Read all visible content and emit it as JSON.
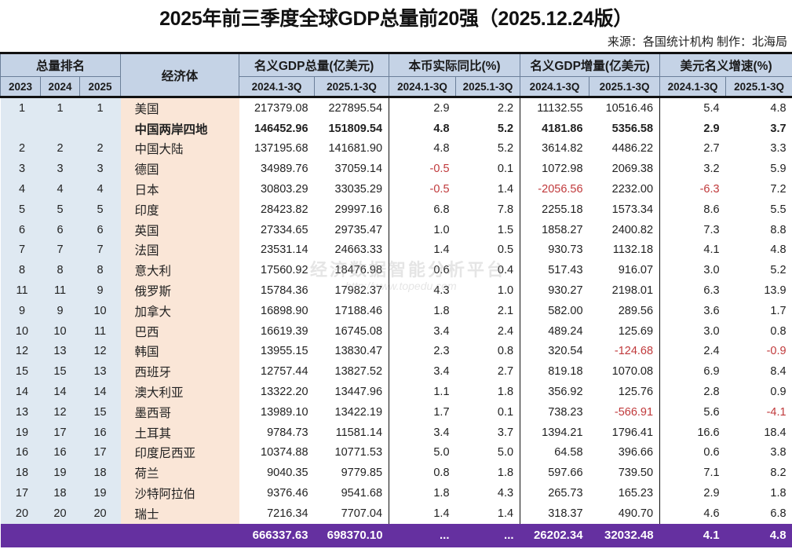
{
  "title": "2025年前三季度全球GDP总量前20强（2025.12.24版）",
  "source": "来源：各国统计机构 制作：北海局",
  "watermark": {
    "line1": "经济数据智能分析平台",
    "line2": "http://www.topedu.com"
  },
  "header": {
    "rank_group": "总量排名",
    "economy": "经济体",
    "groups": [
      "名义GDP总量(亿美元)",
      "本币实际同比(%)",
      "名义GDP增量(亿美元)",
      "美元名义增速(%)"
    ],
    "rank_years": [
      "2023",
      "2024",
      "2025"
    ],
    "periods": [
      "2024.1-3Q",
      "2025.1-3Q",
      "2024.1-3Q",
      "2025.1-3Q",
      "2024.1-3Q",
      "2025.1-3Q",
      "2024.1-3Q",
      "2025.1-3Q"
    ]
  },
  "rows": [
    {
      "r23": "1",
      "r24": "1",
      "r25": "1",
      "name": "美国",
      "gdp24": "217379.08",
      "gdp25": "227895.54",
      "real24": "2.9",
      "real25": "2.2",
      "inc24": "11132.55",
      "inc25": "10516.46",
      "usd24": "5.4",
      "usd25": "4.8"
    },
    {
      "r23": "",
      "r24": "",
      "r25": "",
      "name": "中国两岸四地",
      "gdp24": "146452.96",
      "gdp25": "151809.54",
      "real24": "4.8",
      "real25": "5.2",
      "inc24": "4181.86",
      "inc25": "5356.58",
      "usd24": "2.9",
      "usd25": "3.7",
      "bold": true
    },
    {
      "r23": "2",
      "r24": "2",
      "r25": "2",
      "name": "中国大陆",
      "gdp24": "137195.68",
      "gdp25": "141681.90",
      "real24": "4.8",
      "real25": "5.2",
      "inc24": "3614.82",
      "inc25": "4486.22",
      "usd24": "2.7",
      "usd25": "3.3"
    },
    {
      "r23": "3",
      "r24": "3",
      "r25": "3",
      "name": "德国",
      "gdp24": "34989.76",
      "gdp25": "37059.14",
      "real24": "-0.5",
      "real25": "0.1",
      "inc24": "1072.98",
      "inc25": "2069.38",
      "usd24": "3.2",
      "usd25": "5.9"
    },
    {
      "r23": "4",
      "r24": "4",
      "r25": "4",
      "name": "日本",
      "gdp24": "30803.29",
      "gdp25": "33035.29",
      "real24": "-0.5",
      "real25": "1.4",
      "inc24": "-2056.56",
      "inc25": "2232.00",
      "usd24": "-6.3",
      "usd25": "7.2"
    },
    {
      "r23": "5",
      "r24": "5",
      "r25": "5",
      "name": "印度",
      "gdp24": "28423.82",
      "gdp25": "29997.16",
      "real24": "6.8",
      "real25": "7.8",
      "inc24": "2255.18",
      "inc25": "1573.34",
      "usd24": "8.6",
      "usd25": "5.5"
    },
    {
      "r23": "6",
      "r24": "6",
      "r25": "6",
      "name": "英国",
      "gdp24": "27334.65",
      "gdp25": "29735.47",
      "real24": "1.0",
      "real25": "1.5",
      "inc24": "1858.27",
      "inc25": "2400.82",
      "usd24": "7.3",
      "usd25": "8.8"
    },
    {
      "r23": "7",
      "r24": "7",
      "r25": "7",
      "name": "法国",
      "gdp24": "23531.14",
      "gdp25": "24663.33",
      "real24": "1.4",
      "real25": "0.5",
      "inc24": "930.73",
      "inc25": "1132.18",
      "usd24": "4.1",
      "usd25": "4.8"
    },
    {
      "r23": "8",
      "r24": "8",
      "r25": "8",
      "name": "意大利",
      "gdp24": "17560.92",
      "gdp25": "18476.98",
      "real24": "0.6",
      "real25": "0.4",
      "inc24": "517.43",
      "inc25": "916.07",
      "usd24": "3.0",
      "usd25": "5.2"
    },
    {
      "r23": "11",
      "r24": "11",
      "r25": "9",
      "name": "俄罗斯",
      "gdp24": "15784.36",
      "gdp25": "17982.37",
      "real24": "4.3",
      "real25": "1.0",
      "inc24": "930.27",
      "inc25": "2198.01",
      "usd24": "6.3",
      "usd25": "13.9"
    },
    {
      "r23": "9",
      "r24": "9",
      "r25": "10",
      "name": "加拿大",
      "gdp24": "16898.90",
      "gdp25": "17188.46",
      "real24": "1.8",
      "real25": "2.1",
      "inc24": "582.00",
      "inc25": "289.56",
      "usd24": "3.6",
      "usd25": "1.7"
    },
    {
      "r23": "10",
      "r24": "10",
      "r25": "11",
      "name": "巴西",
      "gdp24": "16619.39",
      "gdp25": "16745.08",
      "real24": "3.4",
      "real25": "2.4",
      "inc24": "489.24",
      "inc25": "125.69",
      "usd24": "3.0",
      "usd25": "0.8"
    },
    {
      "r23": "12",
      "r24": "13",
      "r25": "12",
      "name": "韩国",
      "gdp24": "13955.15",
      "gdp25": "13830.47",
      "real24": "2.3",
      "real25": "0.8",
      "inc24": "320.54",
      "inc25": "-124.68",
      "usd24": "2.4",
      "usd25": "-0.9"
    },
    {
      "r23": "15",
      "r24": "15",
      "r25": "13",
      "name": "西班牙",
      "gdp24": "12757.44",
      "gdp25": "13827.52",
      "real24": "3.4",
      "real25": "2.7",
      "inc24": "819.18",
      "inc25": "1070.08",
      "usd24": "6.9",
      "usd25": "8.4"
    },
    {
      "r23": "14",
      "r24": "14",
      "r25": "14",
      "name": "澳大利亚",
      "gdp24": "13322.20",
      "gdp25": "13447.96",
      "real24": "1.1",
      "real25": "1.8",
      "inc24": "356.92",
      "inc25": "125.76",
      "usd24": "2.8",
      "usd25": "0.9"
    },
    {
      "r23": "13",
      "r24": "12",
      "r25": "15",
      "name": "墨西哥",
      "gdp24": "13989.10",
      "gdp25": "13422.19",
      "real24": "1.7",
      "real25": "0.1",
      "inc24": "738.23",
      "inc25": "-566.91",
      "usd24": "5.6",
      "usd25": "-4.1"
    },
    {
      "r23": "19",
      "r24": "17",
      "r25": "16",
      "name": "土耳其",
      "gdp24": "9784.73",
      "gdp25": "11581.14",
      "real24": "3.4",
      "real25": "3.7",
      "inc24": "1394.21",
      "inc25": "1796.41",
      "usd24": "16.6",
      "usd25": "18.4"
    },
    {
      "r23": "16",
      "r24": "16",
      "r25": "17",
      "name": "印度尼西亚",
      "gdp24": "10374.88",
      "gdp25": "10771.53",
      "real24": "5.0",
      "real25": "5.0",
      "inc24": "64.58",
      "inc25": "396.66",
      "usd24": "0.6",
      "usd25": "3.8"
    },
    {
      "r23": "18",
      "r24": "19",
      "r25": "18",
      "name": "荷兰",
      "gdp24": "9040.35",
      "gdp25": "9779.85",
      "real24": "0.8",
      "real25": "1.8",
      "inc24": "597.66",
      "inc25": "739.50",
      "usd24": "7.1",
      "usd25": "8.2"
    },
    {
      "r23": "17",
      "r24": "18",
      "r25": "19",
      "name": "沙特阿拉伯",
      "gdp24": "9376.46",
      "gdp25": "9541.68",
      "real24": "1.8",
      "real25": "4.3",
      "inc24": "265.73",
      "inc25": "165.23",
      "usd24": "2.9",
      "usd25": "1.8"
    },
    {
      "r23": "20",
      "r24": "20",
      "r25": "20",
      "name": "瑞士",
      "gdp24": "7216.34",
      "gdp25": "7707.04",
      "real24": "1.4",
      "real25": "1.4",
      "inc24": "318.37",
      "inc25": "490.70",
      "usd24": "4.6",
      "usd25": "6.8"
    }
  ],
  "total": {
    "name": "",
    "gdp24": "666337.63",
    "gdp25": "698370.10",
    "real24": "...",
    "real25": "...",
    "inc24": "26202.34",
    "inc25": "32032.48",
    "usd24": "4.1",
    "usd25": "4.8"
  },
  "colors": {
    "header_bg": "#c5d3e6",
    "rank_bg": "#dfe9f2",
    "name_bg": "#fae6d7",
    "total_bg": "#6530a0",
    "negative": "#c0393b"
  }
}
